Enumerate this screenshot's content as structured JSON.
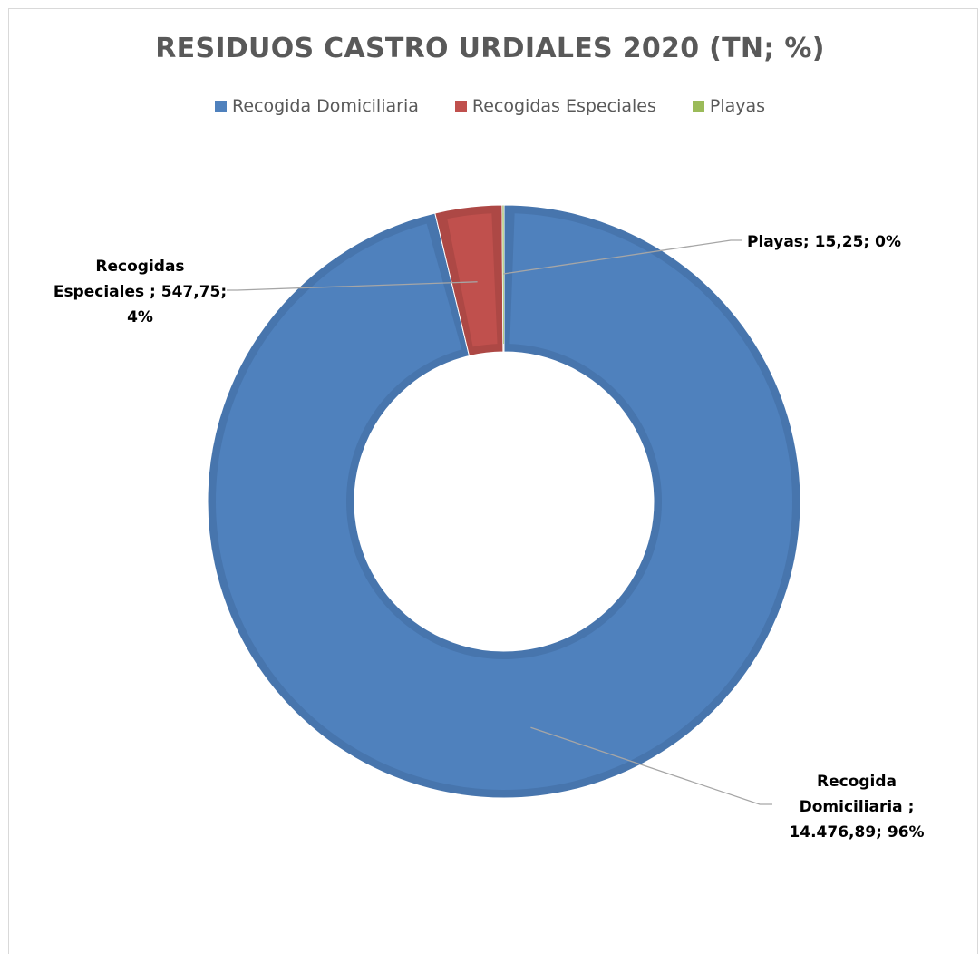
{
  "chart_data": {
    "type": "doughnut",
    "title": "RESIDUOS CASTRO URDIALES 2020 (TN; %)",
    "legend_position": "top",
    "series": [
      {
        "name": "",
        "values": [
          14476.89,
          547.75,
          15.25
        ]
      }
    ],
    "categories": [
      "Recogida Domiciliaria",
      "Recogidas Especiales",
      "Playas"
    ],
    "colors": [
      "#4f81bd",
      "#c0504d",
      "#9bbb59"
    ],
    "edge_colors": [
      "#4775ad",
      "#ad4845",
      "#8ba850"
    ],
    "data_labels": [
      "Recogida\nDomiciliaria ;\n14.476,89; 96%",
      "Recogidas\nEspeciales ; 547,75;\n4%",
      "Playas; 15,25; 0%"
    ]
  }
}
